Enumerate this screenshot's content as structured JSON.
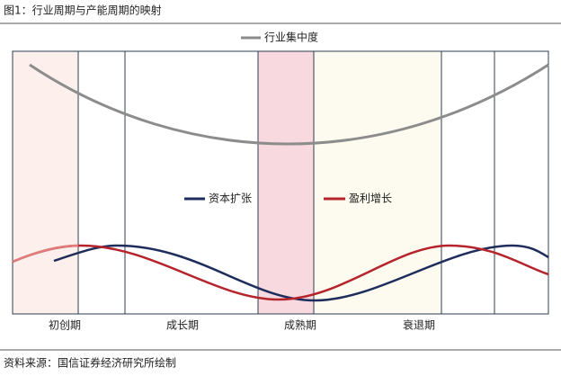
{
  "title": "图1：行业周期与产能周期的映射",
  "legend": {
    "concentration": "行业集中度",
    "capital": "资本扩张",
    "profit": "盈利增长"
  },
  "phases": [
    "初创期",
    "成长期",
    "成熟期",
    "衰退期"
  ],
  "source": "资料来源：国信证券经济研究所绘制"
}
